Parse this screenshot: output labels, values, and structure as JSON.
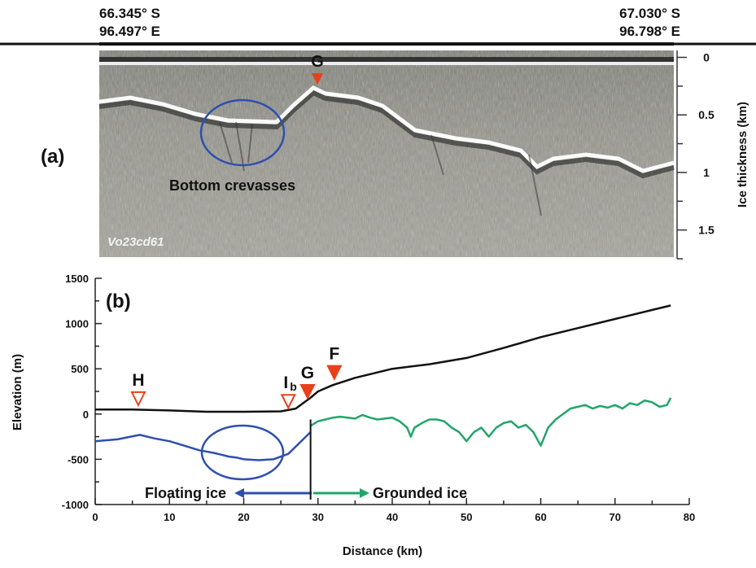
{
  "chart_data": [
    {
      "type": "image",
      "corner_labels": [
        {
          "lat": "66.345° S",
          "lon": "96.497° E"
        },
        {
          "lat": "67.030° S",
          "lon": "96.798° E"
        }
      ],
      "panel_label": "(a)",
      "annotations": [
        "G",
        "Bottom crevasses"
      ],
      "image_label": "Vo23cd61",
      "y_label": "Ice thickness (km)",
      "ylim": [
        -0.06,
        1.75
      ],
      "yticks": [
        0,
        0.5,
        1,
        1.5
      ],
      "minor_yticks": [
        0.25,
        0.75,
        1.25,
        1.75
      ]
    },
    {
      "type": "line",
      "panel_label": "(b)",
      "x_label": "Distance (km)",
      "y_label": "Elevation (m)",
      "xlim": [
        0,
        80
      ],
      "ylim": [
        -1000,
        1500
      ],
      "xticks": [
        0,
        10,
        20,
        30,
        40,
        50,
        60,
        70,
        80
      ],
      "minor_xticks": [
        5,
        15,
        25,
        35,
        45,
        55,
        65,
        75
      ],
      "yticks": [
        -1000,
        -500,
        0,
        500,
        1000,
        1500
      ],
      "minor_yticks": [
        -750,
        -250,
        250,
        750,
        1250
      ],
      "series": [
        {
          "color": "#111111",
          "x": [
            0,
            5,
            10,
            15,
            20,
            25,
            27,
            29,
            30,
            32,
            35,
            40,
            45,
            50,
            55,
            60,
            65,
            70,
            75,
            77.5
          ],
          "values": [
            50,
            50,
            40,
            25,
            25,
            30,
            60,
            180,
            250,
            320,
            400,
            500,
            550,
            620,
            730,
            850,
            950,
            1050,
            1150,
            1200
          ]
        },
        {
          "color": "#2f4fae",
          "x": [
            0,
            3,
            6,
            8,
            10,
            12,
            14,
            16,
            17,
            18,
            19,
            20,
            22,
            24,
            25,
            26,
            27,
            28,
            29
          ],
          "values": [
            -300,
            -280,
            -230,
            -270,
            -300,
            -350,
            -400,
            -430,
            -450,
            -470,
            -480,
            -500,
            -510,
            -500,
            -470,
            -440,
            -360,
            -280,
            -200
          ]
        },
        {
          "color": "#22a56b",
          "x": [
            29,
            30,
            31,
            32,
            33,
            34,
            35,
            36,
            37,
            38,
            39,
            40,
            41,
            42,
            42.5,
            43,
            44,
            45,
            46,
            47,
            48,
            49,
            50,
            51,
            52,
            53,
            54,
            55,
            56,
            57,
            58,
            59,
            60,
            61,
            62,
            63,
            64,
            65,
            66,
            67,
            68,
            69,
            70,
            71,
            72,
            73,
            74,
            75,
            76,
            77,
            77.5
          ],
          "values": [
            -130,
            -80,
            -60,
            -40,
            -30,
            -40,
            -50,
            -10,
            -40,
            -60,
            -50,
            -40,
            -80,
            -150,
            -250,
            -150,
            -100,
            -60,
            -60,
            -80,
            -150,
            -200,
            -300,
            -200,
            -150,
            -250,
            -150,
            -100,
            -80,
            -150,
            -120,
            -200,
            -350,
            -150,
            -60,
            0,
            60,
            80,
            100,
            60,
            90,
            70,
            100,
            60,
            120,
            100,
            150,
            130,
            80,
            100,
            180
          ]
        }
      ],
      "markers": [
        {
          "label": "H",
          "x": 5.8,
          "y": 170,
          "style": "hollow"
        },
        {
          "label": "I",
          "sub": "b",
          "x": 26,
          "y": 140,
          "style": "hollow"
        },
        {
          "label": "G",
          "x": 28.6,
          "y": 250,
          "style": "filled"
        },
        {
          "label": "F",
          "x": 32.2,
          "y": 460,
          "style": "filled"
        }
      ],
      "grounding_line_x": 29,
      "regions": [
        "Floating ice",
        "Grounded ice"
      ]
    }
  ]
}
